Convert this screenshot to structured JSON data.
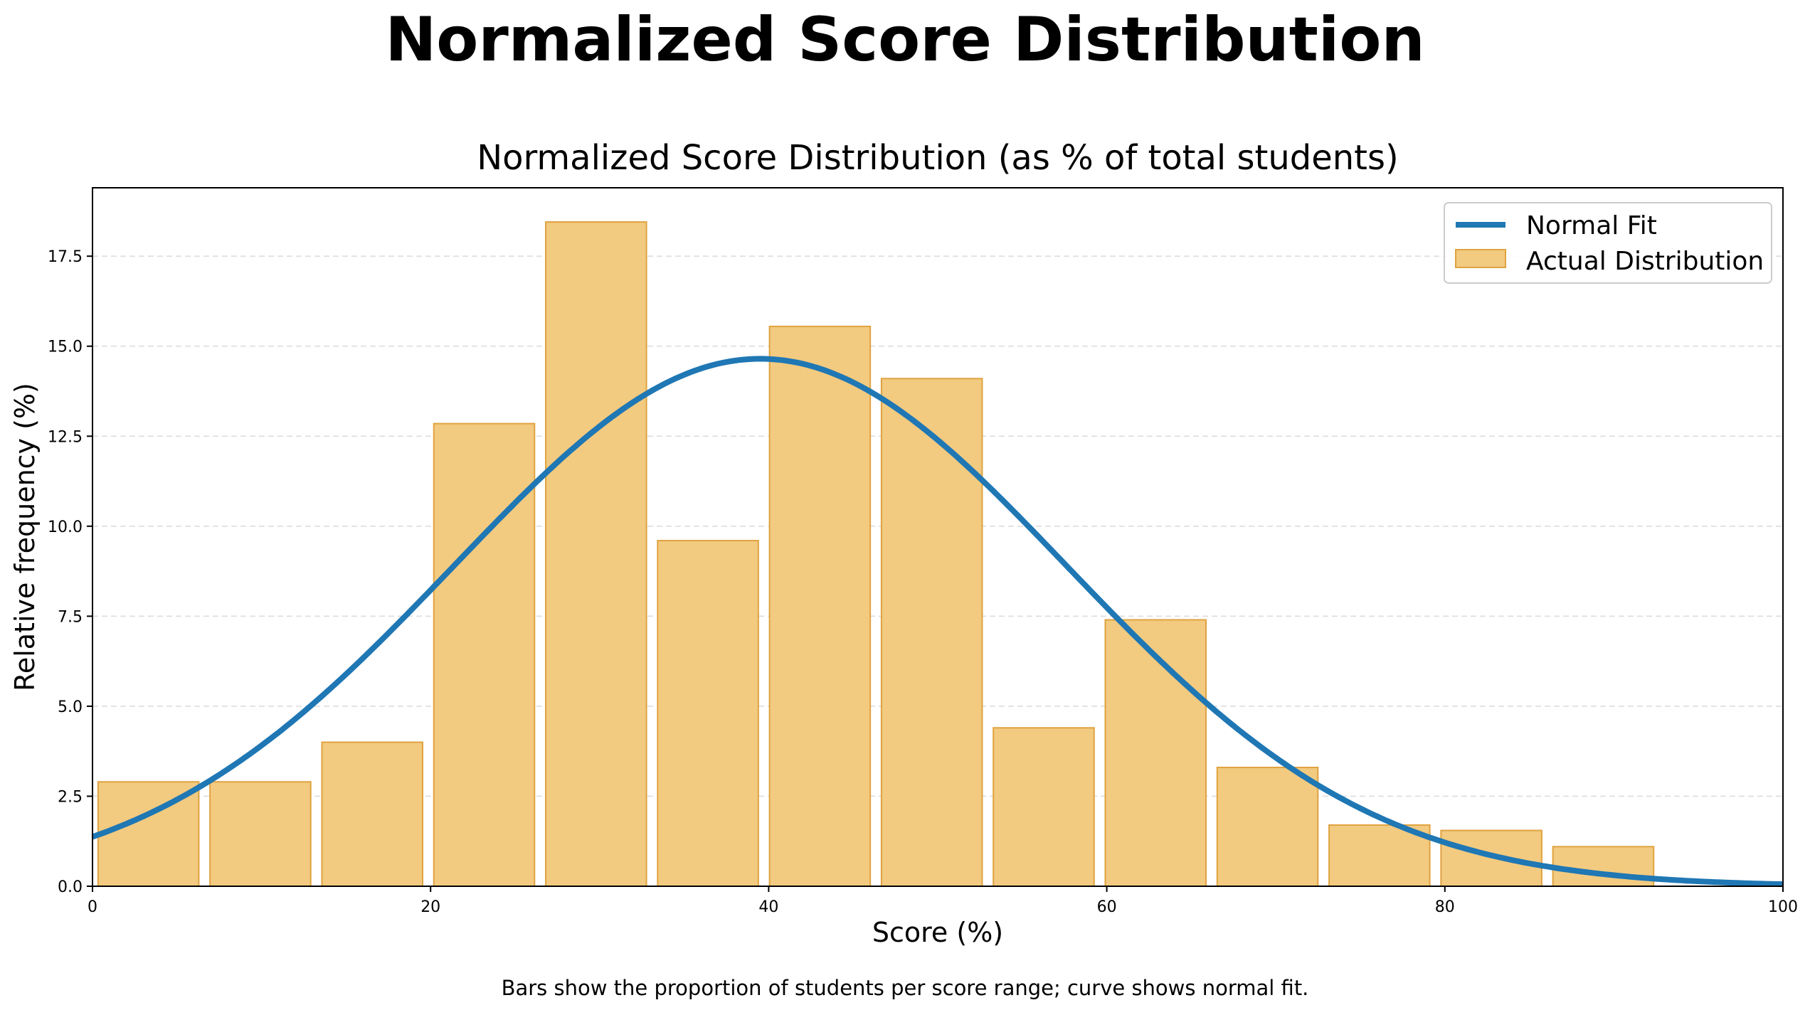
{
  "suptitle": "Normalized Score Distribution",
  "caption": "Bars show the proportion of students per score range; curve shows normal fit.",
  "chart_data": {
    "type": "bar",
    "title": "Normalized Score Distribution (as % of total students)",
    "xlabel": "Score (%)",
    "ylabel": "Relative frequency (%)",
    "xlim": [
      0,
      100
    ],
    "ylim": [
      0,
      19.4
    ],
    "xticks": [
      0,
      20,
      40,
      60,
      80,
      100
    ],
    "yticks": [
      0.0,
      2.5,
      5.0,
      7.5,
      10.0,
      12.5,
      15.0,
      17.5
    ],
    "ytick_labels": [
      "0.0",
      "2.5",
      "5.0",
      "7.5",
      "10.0",
      "12.5",
      "15.0",
      "17.5"
    ],
    "grid": "y-dashed",
    "legend": "top-right",
    "bins": {
      "start": 0,
      "width": 6.62
    },
    "bars": {
      "name": "Actual Distribution",
      "color": "#f2ca80",
      "edge_color": "#e0a340",
      "values": [
        2.9,
        2.9,
        4.0,
        12.85,
        18.45,
        9.6,
        15.55,
        14.1,
        4.4,
        7.4,
        3.3,
        1.7,
        1.55,
        1.1,
        0
      ]
    },
    "curve": {
      "name": "Normal Fit",
      "color": "#1f77b4",
      "mean": 39.5,
      "std": 18.15,
      "peak": 14.65
    }
  }
}
